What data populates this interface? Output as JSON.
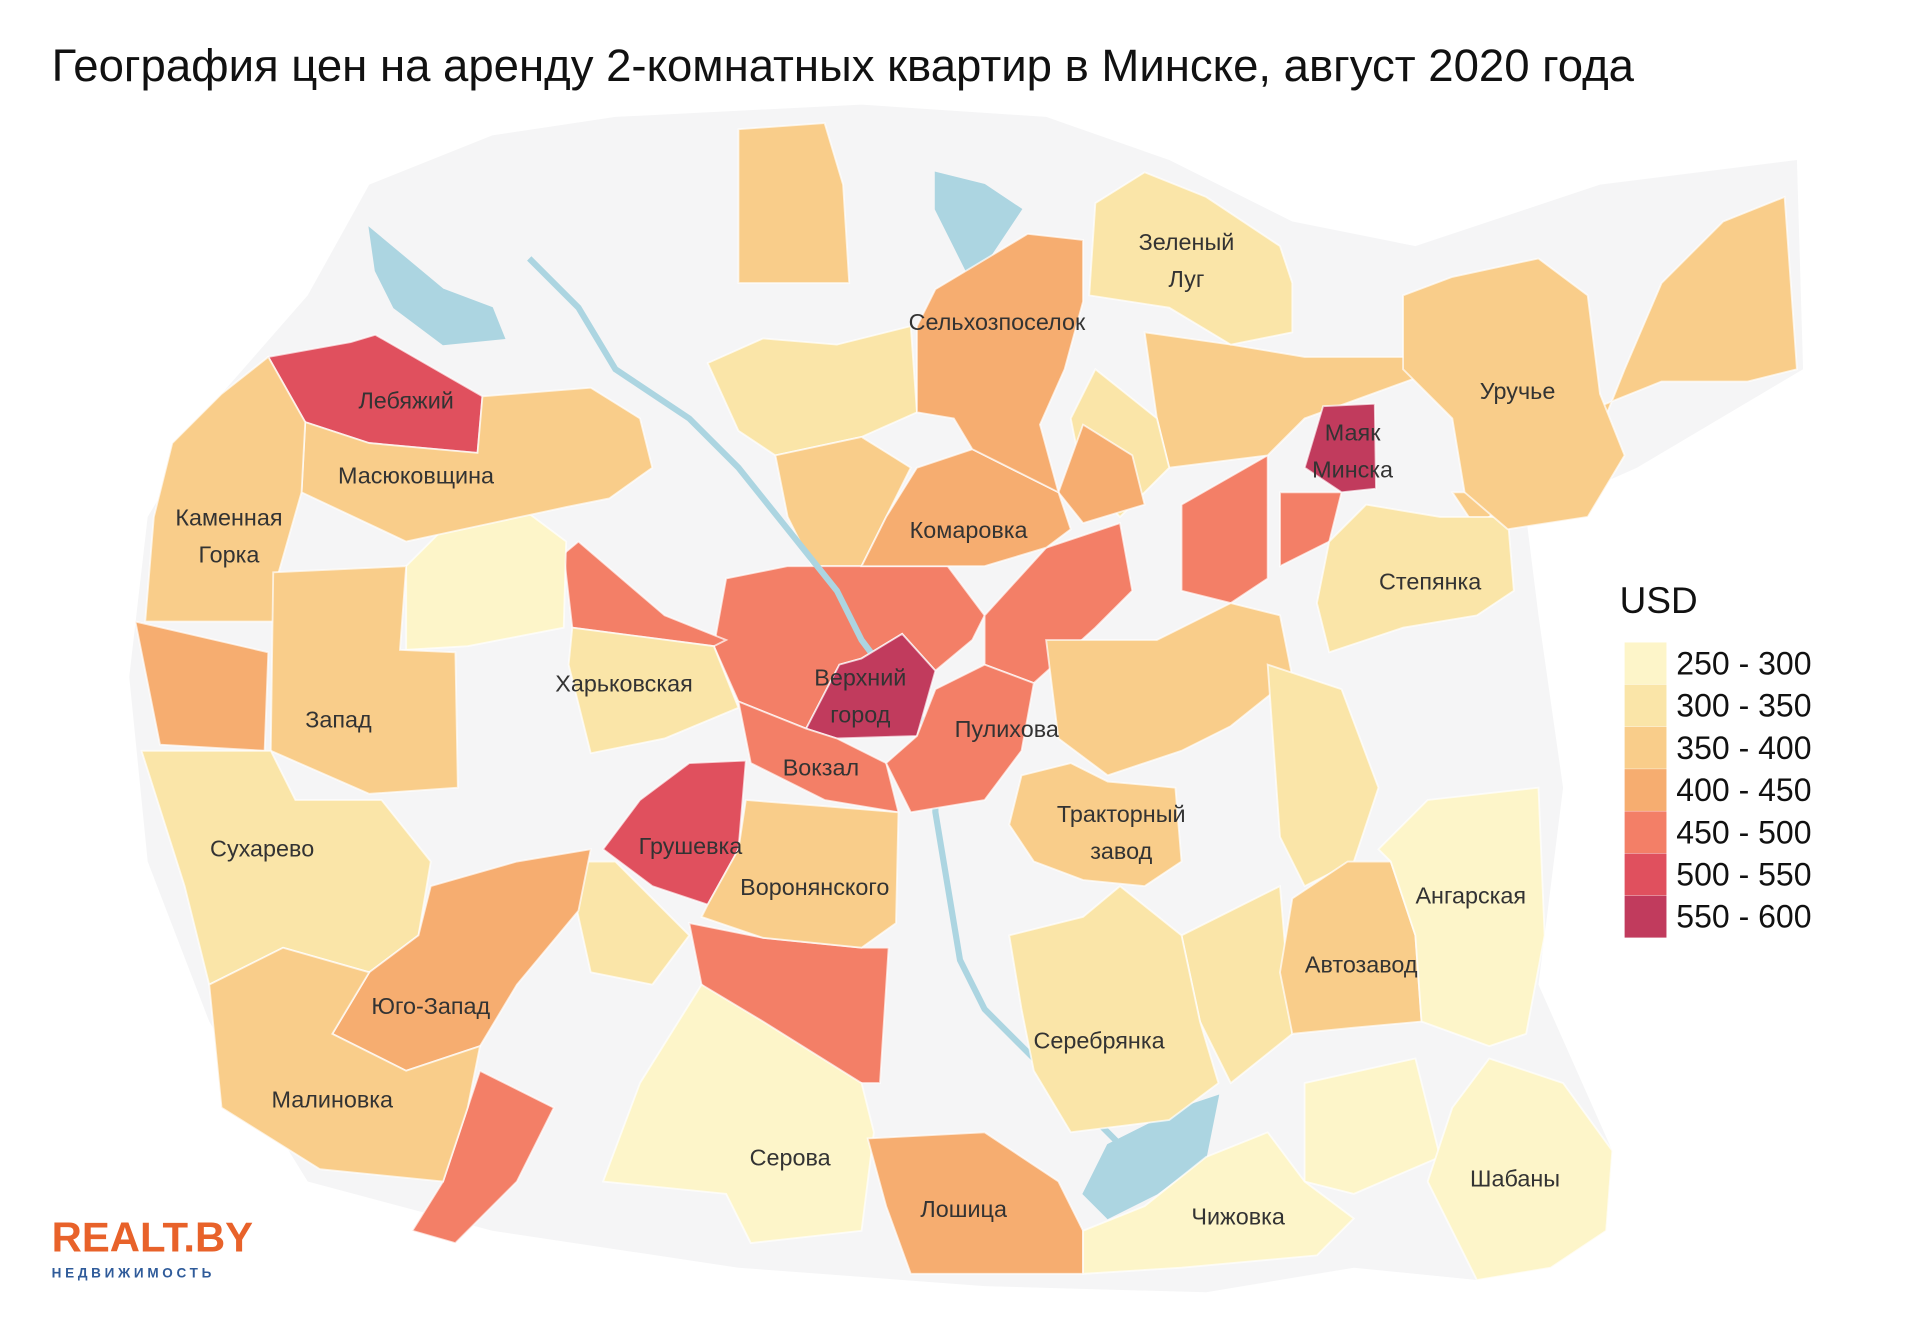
{
  "title": "География цен на аренду 2-комнатных квартир в Минске, август 2020 года",
  "legend": {
    "title": "USD",
    "items": [
      {
        "label": "250 - 300",
        "color": "#fdf5c9"
      },
      {
        "label": "300 - 350",
        "color": "#fae5a8"
      },
      {
        "label": "350 - 400",
        "color": "#f9cd8a"
      },
      {
        "label": "400 - 450",
        "color": "#f6ad70"
      },
      {
        "label": "450 - 500",
        "color": "#f37f67"
      },
      {
        "label": "500 - 550",
        "color": "#e0505e"
      },
      {
        "label": "550 - 600",
        "color": "#c13b5d"
      }
    ]
  },
  "districts": [
    {
      "name": [
        "Лебяжий"
      ],
      "color": "#e0505e"
    },
    {
      "name": [
        "Масюковщина"
      ],
      "color": "#f9cd8a"
    },
    {
      "name": [
        "Каменная",
        "Горка"
      ],
      "color": "#f9cd8a"
    },
    {
      "name": [
        "Запад"
      ],
      "color": "#f9cd8a"
    },
    {
      "name": [
        "Харьковская"
      ],
      "color": "#fae5a8"
    },
    {
      "name": [
        "Верхний",
        "город"
      ],
      "color": "#c13b5d"
    },
    {
      "name": [
        "Вокзал"
      ],
      "color": "#f37f67"
    },
    {
      "name": [
        "Пулихова"
      ],
      "color": "#f37f67"
    },
    {
      "name": [
        "Грушевка"
      ],
      "color": "#e0505e"
    },
    {
      "name": [
        "Воронянского"
      ],
      "color": "#f9cd8a"
    },
    {
      "name": [
        "Сухарево"
      ],
      "color": "#fae5a8"
    },
    {
      "name": [
        "Юго-Запад"
      ],
      "color": "#f6ad70"
    },
    {
      "name": [
        "Малиновка"
      ],
      "color": "#f9cd8a"
    },
    {
      "name": [
        "Серова"
      ],
      "color": "#fdf5c9"
    },
    {
      "name": [
        "Лошица"
      ],
      "color": "#f6ad70"
    },
    {
      "name": [
        "Чижовка"
      ],
      "color": "#fdf5c9"
    },
    {
      "name": [
        "Шабаны"
      ],
      "color": "#fdf5c9"
    },
    {
      "name": [
        "Серебрянка"
      ],
      "color": "#fae5a8"
    },
    {
      "name": [
        "Автозавод"
      ],
      "color": "#f9cd8a"
    },
    {
      "name": [
        "Ангарская"
      ],
      "color": "#fdf5c9"
    },
    {
      "name": [
        "Тракторный",
        "завод"
      ],
      "color": "#f9cd8a"
    },
    {
      "name": [
        "Степянка"
      ],
      "color": "#fae5a8"
    },
    {
      "name": [
        "Уручье"
      ],
      "color": "#f9cd8a"
    },
    {
      "name": [
        "Маяк",
        "Минска"
      ],
      "color": "#c13b5d"
    },
    {
      "name": [
        "Комаровка"
      ],
      "color": "#f6ad70"
    },
    {
      "name": [
        "Сельхозпоселок"
      ],
      "color": "#f6ad70"
    },
    {
      "name": [
        "Зеленый",
        "Луг"
      ],
      "color": "#fae5a8"
    }
  ],
  "logo": {
    "brand": "REALT.BY",
    "tagline": "НЕДВИЖИМОСТЬ"
  }
}
